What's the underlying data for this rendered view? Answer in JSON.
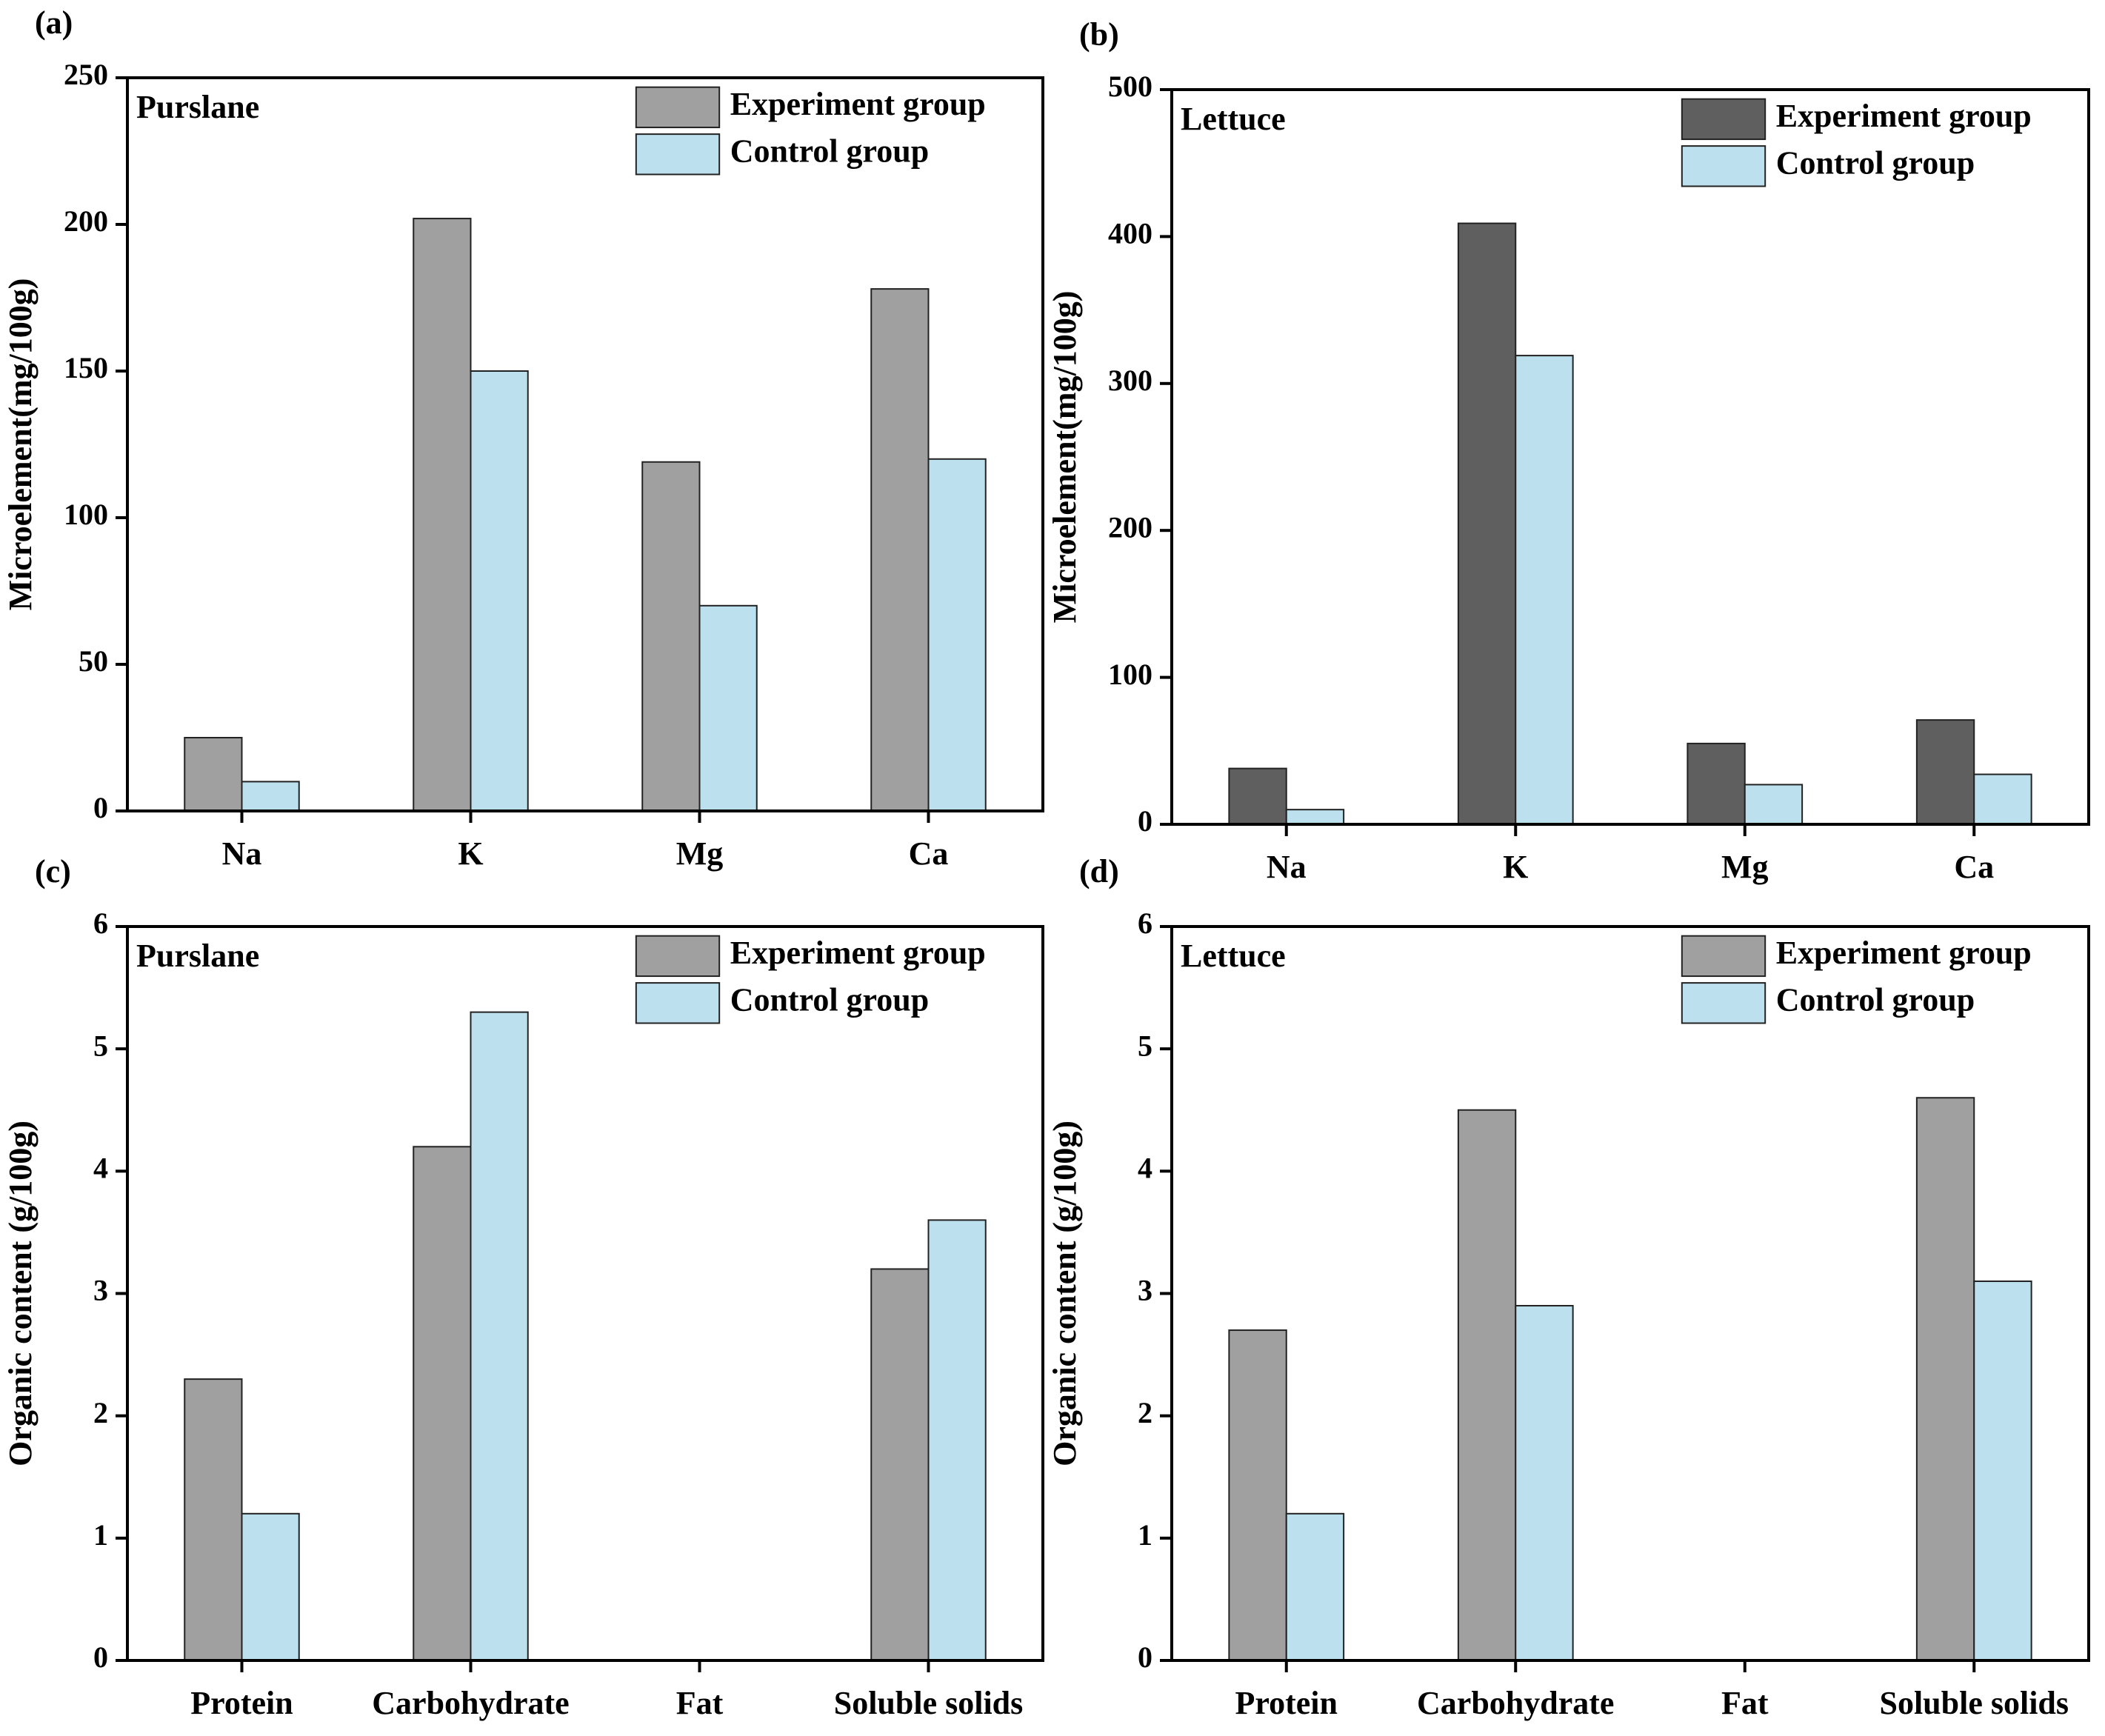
{
  "chart_data": [
    {
      "type": "bar",
      "label": "(a)",
      "title": "Purslane",
      "ylabel": "Microelement(mg/100g)",
      "categories": [
        "Na",
        "K",
        "Mg",
        "Ca"
      ],
      "series": [
        {
          "name": "Experiment group",
          "color": "#a0a0a0",
          "values": [
            25,
            202,
            119,
            178
          ]
        },
        {
          "name": "Control group",
          "color": "#bde0ef",
          "values": [
            10,
            150,
            70,
            120
          ]
        }
      ],
      "ylim": [
        0,
        250
      ],
      "yticks": [
        0,
        50,
        100,
        150,
        200,
        250
      ]
    },
    {
      "type": "bar",
      "label": "(b)",
      "title": "Lettuce",
      "ylabel": "Microelement(mg/100g)",
      "categories": [
        "Na",
        "K",
        "Mg",
        "Ca"
      ],
      "series": [
        {
          "name": "Experiment group",
          "color": "#5f5f5f",
          "values": [
            38,
            409,
            55,
            71
          ]
        },
        {
          "name": "Control group",
          "color": "#bde0ef",
          "values": [
            10,
            319,
            27,
            34
          ]
        }
      ],
      "ylim": [
        0,
        500
      ],
      "yticks": [
        0,
        100,
        200,
        300,
        400,
        500
      ]
    },
    {
      "type": "bar",
      "label": "(c)",
      "title": "Purslane",
      "ylabel": "Organic content (g/100g)",
      "categories": [
        "Protein",
        "Carbohydrate",
        "Fat",
        "Soluble solids"
      ],
      "series": [
        {
          "name": "Experiment group",
          "color": "#a0a0a0",
          "values": [
            2.3,
            4.2,
            0,
            3.2
          ]
        },
        {
          "name": "Control group",
          "color": "#bde0ef",
          "values": [
            1.2,
            5.3,
            0,
            3.6
          ]
        }
      ],
      "ylim": [
        0,
        6
      ],
      "yticks": [
        0,
        1,
        2,
        3,
        4,
        5,
        6
      ]
    },
    {
      "type": "bar",
      "label": "(d)",
      "title": "Lettuce",
      "ylabel": "Organic content (g/100g)",
      "categories": [
        "Protein",
        "Carbohydrate",
        "Fat",
        "Soluble solids"
      ],
      "series": [
        {
          "name": "Experiment group",
          "color": "#a0a0a0",
          "values": [
            2.7,
            4.5,
            0,
            4.6
          ]
        },
        {
          "name": "Control group",
          "color": "#bde0ef",
          "values": [
            1.2,
            2.9,
            0,
            3.1
          ]
        }
      ],
      "ylim": [
        0,
        6
      ],
      "yticks": [
        0,
        1,
        2,
        3,
        4,
        5,
        6
      ]
    }
  ]
}
